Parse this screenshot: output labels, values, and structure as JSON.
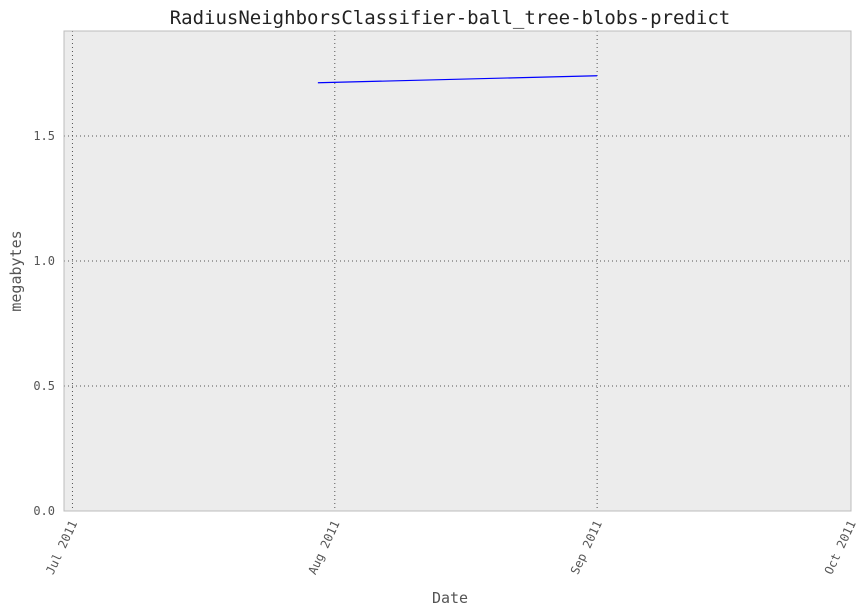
{
  "chart_data": {
    "type": "line",
    "title": "RadiusNeighborsClassifier-ball_tree-blobs-predict",
    "xlabel": "Date",
    "ylabel": "megabytes",
    "x_ticks": [
      "2011-07-01",
      "2011-08-01",
      "2011-09-01",
      "2011-10-01"
    ],
    "x_tick_labels": [
      "Jul 2011",
      "Aug 2011",
      "Sep 2011",
      "Oct 2011"
    ],
    "xlim": [
      "2011-06-30",
      "2011-10-01"
    ],
    "y_ticks": [
      0.0,
      0.5,
      1.0,
      1.5
    ],
    "y_tick_labels": [
      "0.0",
      "0.5",
      "1.0",
      "1.5"
    ],
    "ylim": [
      0,
      1.92
    ],
    "grid": true,
    "background": "#ececec",
    "series": [
      {
        "color": "#0000ff",
        "x": [
          "2011-07-30",
          "2011-09-01"
        ],
        "y": [
          1.713,
          1.741
        ]
      }
    ]
  }
}
